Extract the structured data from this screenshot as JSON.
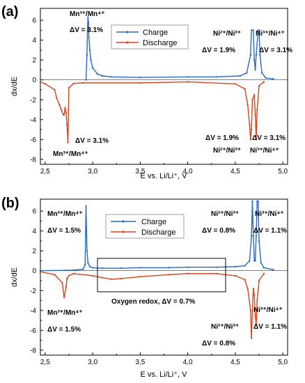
{
  "colors": {
    "charge": "#2a68c4",
    "discharge": "#d2441d",
    "axis": "#000000"
  },
  "panels": [
    {
      "letter": "(a)",
      "annotations": [
        "Mn³⁺/Mn⁴⁺",
        "ΔV = 3.1%",
        "Ni²⁺/Ni³⁺",
        "Ni³⁺/Ni⁴⁺",
        "ΔV = 1.9%",
        "ΔV = 3.1%",
        "ΔV = 3.1%",
        "Mn³⁺/Mn⁴⁺",
        "ΔV = 1.9%",
        "ΔV = 3.1%",
        "Ni²⁺/Ni³⁺",
        "Ni³⁺/Ni⁴⁺"
      ]
    },
    {
      "letter": "(b)",
      "annotations": [
        "Mn³⁺/Mn⁴⁺",
        "ΔV = 1.5%",
        "Ni²⁺/Ni³⁺",
        "ΔV = 0.8%",
        "Ni³⁺/Ni⁴⁺",
        "ΔV = 1.1%",
        "Mn³⁺/Mn⁴⁺",
        "ΔV = 1.5%",
        "Oxygen redox, ΔV = 0.7%",
        "Ni³⁺/Ni⁴⁺",
        "ΔV = 1.1%",
        "Ni²⁺/Ni³⁺",
        "ΔV = 0.8%"
      ]
    }
  ],
  "chart_data": [
    {
      "type": "line",
      "xlabel": "E vs. Li/Li⁺, V",
      "ylabel": "dx/dE",
      "xlim": [
        2.45,
        5.05
      ],
      "ylim": [
        -8.5,
        7.2
      ],
      "xticks": [
        2.5,
        3.0,
        3.5,
        4.0,
        4.5,
        5.0
      ],
      "xtick_labels": [
        "2,5",
        "3,0",
        "3,5",
        "4,0",
        "4,5",
        "5,0"
      ],
      "yticks": [
        -8,
        -6,
        -4,
        -2,
        0,
        2,
        4,
        6
      ],
      "ytick_labels": [
        "-8",
        "-6",
        "-4",
        "-2",
        "0",
        "2",
        "4",
        "6"
      ],
      "grid": false,
      "legend_position": "top-center",
      "series": [
        {
          "name": "Charge",
          "x": [
            2.93,
            2.94,
            2.945,
            2.95,
            2.955,
            2.96,
            2.97,
            2.98,
            3.0,
            3.05,
            3.1,
            3.2,
            3.5,
            4.0,
            4.3,
            4.55,
            4.62,
            4.66,
            4.67,
            4.69,
            4.7,
            4.71,
            4.72,
            4.74,
            4.75,
            4.76,
            4.78,
            4.82,
            4.9
          ],
          "y": [
            0,
            2.5,
            5,
            6.3,
            5.8,
            4.3,
            3.0,
            2.0,
            1.2,
            0.6,
            0.4,
            0.3,
            0.25,
            0.3,
            0.3,
            0.4,
            0.7,
            2.5,
            5.0,
            5.0,
            2.0,
            1.0,
            2.5,
            5.0,
            5.0,
            2.5,
            0.7,
            0.2,
            0.1
          ]
        },
        {
          "name": "Discharge",
          "x": [
            2.45,
            2.5,
            2.6,
            2.62,
            2.65,
            2.67,
            2.69,
            2.7,
            2.71,
            2.72,
            2.73,
            2.74,
            2.745,
            2.75,
            2.8,
            2.9,
            3.5,
            4.0,
            4.5,
            4.6,
            4.63,
            4.65,
            4.66,
            4.67,
            4.68,
            4.7,
            4.71,
            4.72,
            4.73,
            4.75,
            4.8
          ],
          "y": [
            -0.2,
            -0.4,
            -1.0,
            -1.8,
            -2.5,
            -3.0,
            -3.5,
            -3.5,
            -2.8,
            -3.3,
            -4.5,
            -6.3,
            -3.0,
            -0.8,
            -0.35,
            -0.3,
            -0.3,
            -0.2,
            -0.4,
            -0.9,
            -2.5,
            -4.5,
            -6.0,
            -5.0,
            -2.0,
            -1.5,
            -3.5,
            -6.0,
            -3.0,
            -0.6,
            -0.2
          ]
        }
      ]
    },
    {
      "type": "line",
      "xlabel": "E vs. Li/Li⁺, V",
      "ylabel": "dx/dE",
      "xlim": [
        2.45,
        5.05
      ],
      "ylim": [
        -8.5,
        7.2
      ],
      "xticks": [
        2.5,
        3.0,
        3.5,
        4.0,
        4.5,
        5.0
      ],
      "xtick_labels": [
        "2,5",
        "3,0",
        "3,5",
        "4,0",
        "4,5",
        "5,0"
      ],
      "yticks": [
        -8,
        -6,
        -4,
        -2,
        0,
        2,
        4,
        6
      ],
      "ytick_labels": [
        "-8",
        "-6",
        "-4",
        "-2",
        "0",
        "2",
        "4",
        "6"
      ],
      "grid": false,
      "legend_position": "top-center",
      "series": [
        {
          "name": "Charge",
          "x": [
            2.45,
            2.8,
            2.9,
            2.92,
            2.93,
            2.94,
            2.95,
            2.97,
            3.0,
            3.1,
            3.3,
            3.5,
            3.8,
            4.0,
            4.3,
            4.5,
            4.6,
            4.65,
            4.67,
            4.68,
            4.69,
            4.7,
            4.71,
            4.72,
            4.73,
            4.74,
            4.75,
            4.77,
            4.8,
            4.9
          ],
          "y": [
            0,
            0.05,
            0.15,
            0.6,
            6.5,
            2.0,
            0.8,
            0.4,
            0.3,
            0.25,
            0.25,
            0.3,
            0.3,
            0.35,
            0.35,
            0.4,
            0.5,
            1.0,
            3.5,
            7.0,
            3.5,
            1.0,
            1.0,
            3.5,
            7.0,
            7.0,
            3.0,
            0.8,
            0.3,
            0.1
          ]
        },
        {
          "name": "Discharge",
          "x": [
            2.45,
            2.6,
            2.68,
            2.7,
            2.72,
            2.73,
            2.75,
            2.8,
            3.0,
            3.1,
            3.2,
            3.3,
            3.5,
            3.8,
            4.0,
            4.3,
            4.5,
            4.6,
            4.63,
            4.66,
            4.67,
            4.68,
            4.69,
            4.7,
            4.71,
            4.72,
            4.73,
            4.75,
            4.8
          ],
          "y": [
            -0.1,
            -0.4,
            -1.2,
            -2.7,
            -1.6,
            -0.8,
            -0.5,
            -0.3,
            -0.5,
            -0.7,
            -0.85,
            -0.8,
            -0.6,
            -0.4,
            -0.3,
            -0.3,
            -0.5,
            -0.9,
            -1.8,
            -4.0,
            -6.8,
            -4.0,
            -1.8,
            -2.5,
            -4.5,
            -5.5,
            -3.0,
            -1.0,
            -0.3
          ]
        }
      ]
    }
  ]
}
